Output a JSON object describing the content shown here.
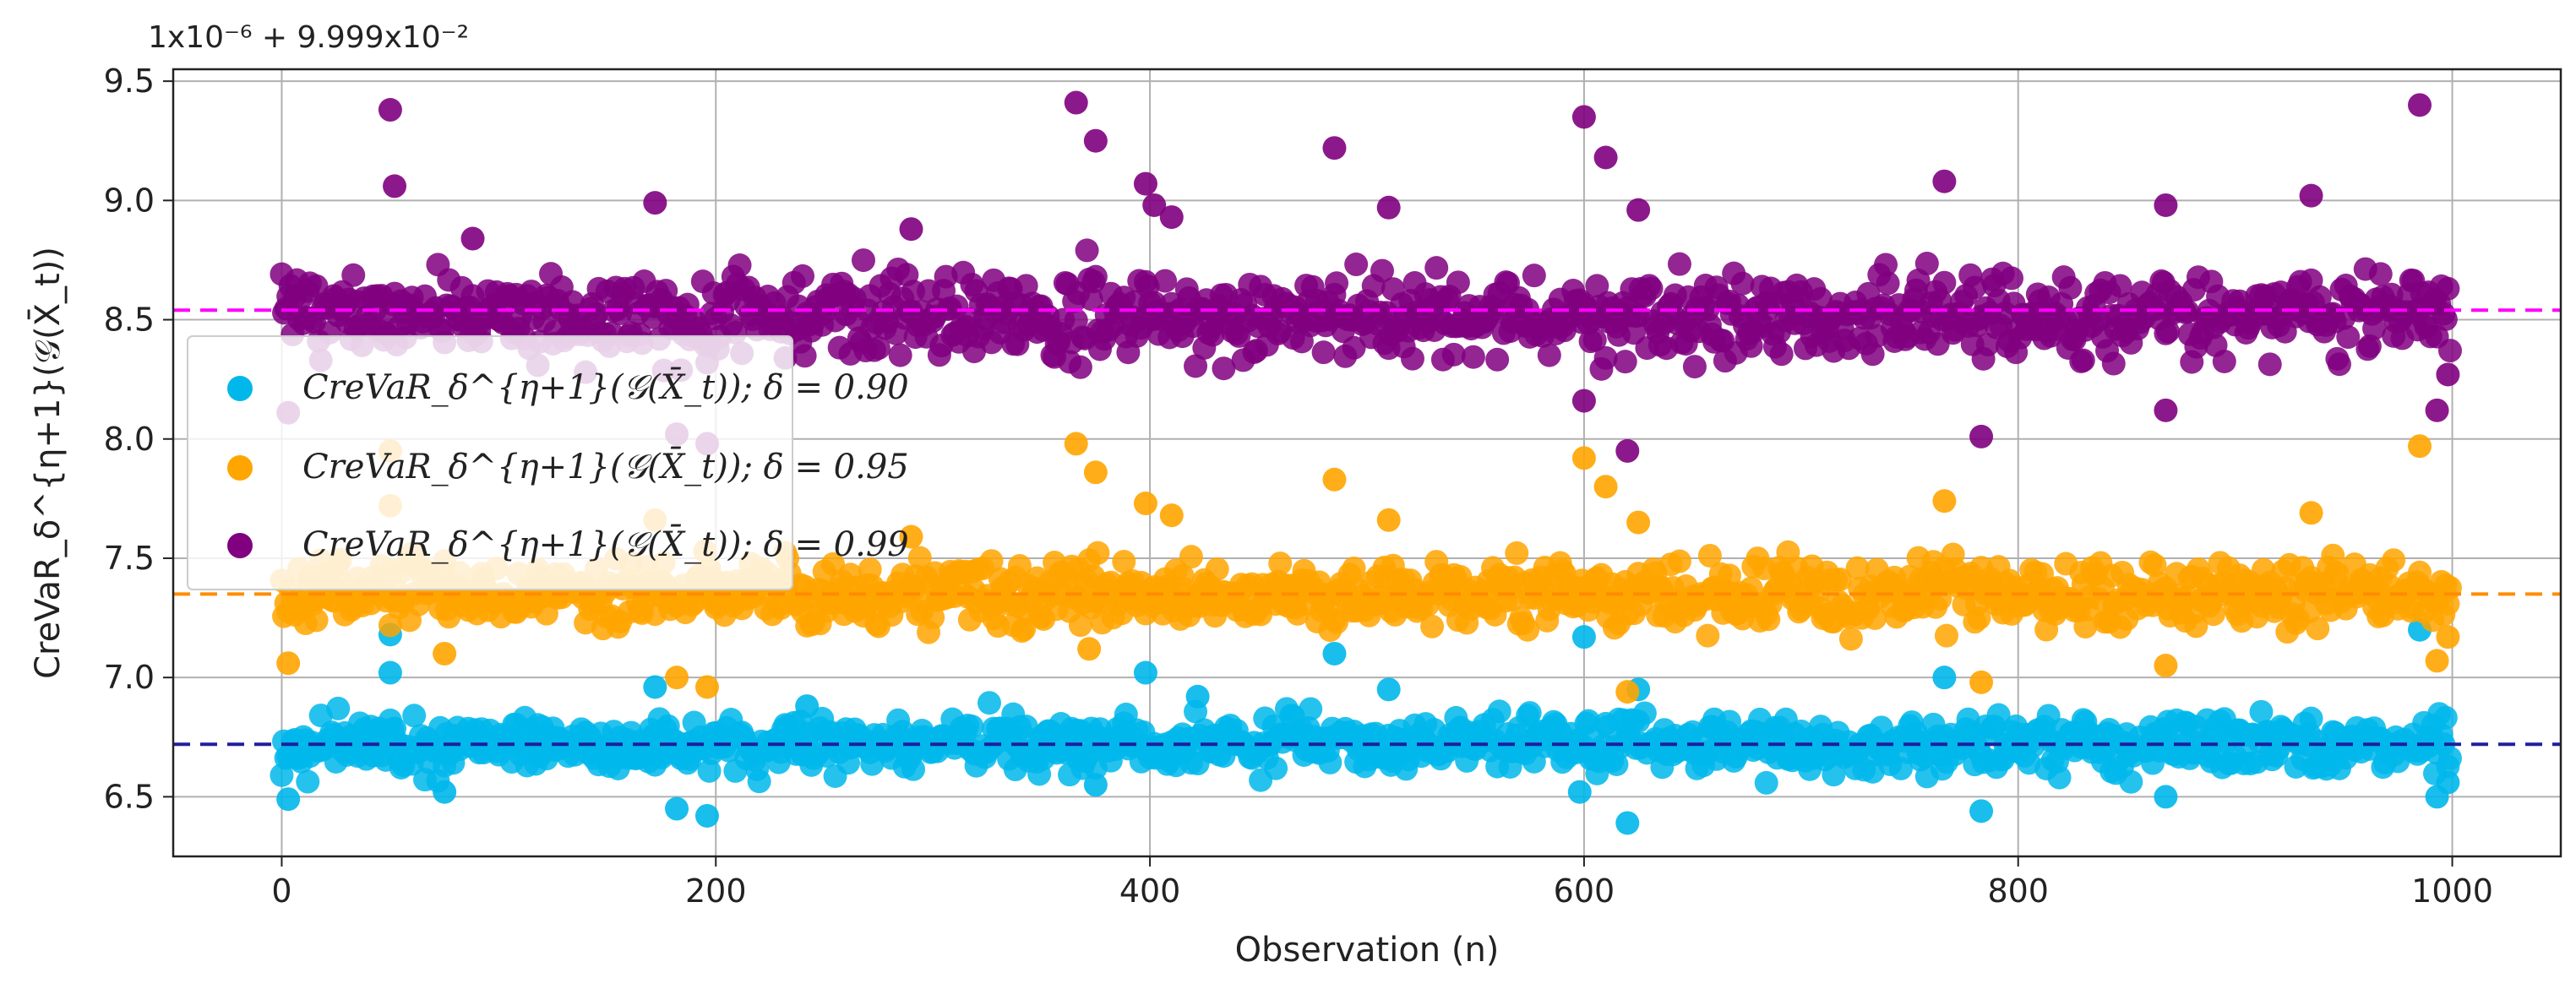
{
  "chart_data": {
    "type": "scatter",
    "title": "",
    "xlabel": "Observation (n)",
    "ylabel": "CreVaR_δ^{η+1}(𝒢(X̄_t))",
    "offset_text": "1x10⁻⁶ + 9.999x10⁻²",
    "xlim": [
      -50,
      1050
    ],
    "ylim": [
      6.25,
      9.55
    ],
    "xticks": [
      0,
      200,
      400,
      600,
      800,
      1000
    ],
    "yticks": [
      6.5,
      7.0,
      7.5,
      8.0,
      8.5,
      9.0,
      9.5
    ],
    "xtick_labels": [
      "0",
      "200",
      "400",
      "600",
      "800",
      "1000"
    ],
    "ytick_labels": [
      "6.5",
      "7.0",
      "7.5",
      "8.0",
      "8.5",
      "9.0",
      "9.5"
    ],
    "grid": true,
    "legend_position": "upper-left",
    "n_points_per_series": 1000,
    "series": [
      {
        "name": "CreVaR_δ^{η+1}(𝒢(X̄_t)); δ = 0.90",
        "color": "#00b7eb",
        "mean": 6.72,
        "spread_low": 6.58,
        "spread_high": 6.86,
        "reference_line": 6.72,
        "reference_line_color": "#1f1f9e",
        "outliers": [
          {
            "x": 3,
            "y": 6.49
          },
          {
            "x": 50,
            "y": 7.02
          },
          {
            "x": 50,
            "y": 7.18
          },
          {
            "x": 75,
            "y": 6.52
          },
          {
            "x": 172,
            "y": 6.96
          },
          {
            "x": 182,
            "y": 6.45
          },
          {
            "x": 196,
            "y": 6.42
          },
          {
            "x": 242,
            "y": 6.88
          },
          {
            "x": 375,
            "y": 6.55
          },
          {
            "x": 398,
            "y": 7.02
          },
          {
            "x": 422,
            "y": 6.92
          },
          {
            "x": 485,
            "y": 7.1
          },
          {
            "x": 510,
            "y": 6.95
          },
          {
            "x": 600,
            "y": 7.17
          },
          {
            "x": 598,
            "y": 6.52
          },
          {
            "x": 620,
            "y": 6.39
          },
          {
            "x": 625,
            "y": 6.95
          },
          {
            "x": 766,
            "y": 7.0
          },
          {
            "x": 783,
            "y": 6.44
          },
          {
            "x": 868,
            "y": 6.5
          },
          {
            "x": 985,
            "y": 7.2
          },
          {
            "x": 993,
            "y": 6.5
          },
          {
            "x": 998,
            "y": 6.56
          }
        ]
      },
      {
        "name": "CreVaR_δ^{η+1}(𝒢(X̄_t)); δ = 0.95",
        "color": "#ffa500",
        "mean": 7.35,
        "spread_low": 7.18,
        "spread_high": 7.52,
        "reference_line": 7.35,
        "reference_line_color": "#ff8c00",
        "outliers": [
          {
            "x": 3,
            "y": 7.06
          },
          {
            "x": 50,
            "y": 7.72
          },
          {
            "x": 50,
            "y": 7.95
          },
          {
            "x": 75,
            "y": 7.1
          },
          {
            "x": 172,
            "y": 7.66
          },
          {
            "x": 182,
            "y": 7.0
          },
          {
            "x": 196,
            "y": 6.96
          },
          {
            "x": 290,
            "y": 7.59
          },
          {
            "x": 366,
            "y": 7.98
          },
          {
            "x": 375,
            "y": 7.86
          },
          {
            "x": 372,
            "y": 7.12
          },
          {
            "x": 398,
            "y": 7.73
          },
          {
            "x": 410,
            "y": 7.68
          },
          {
            "x": 485,
            "y": 7.83
          },
          {
            "x": 510,
            "y": 7.66
          },
          {
            "x": 600,
            "y": 7.92
          },
          {
            "x": 610,
            "y": 7.8
          },
          {
            "x": 620,
            "y": 6.94
          },
          {
            "x": 625,
            "y": 7.65
          },
          {
            "x": 766,
            "y": 7.74
          },
          {
            "x": 783,
            "y": 6.98
          },
          {
            "x": 868,
            "y": 7.05
          },
          {
            "x": 935,
            "y": 7.69
          },
          {
            "x": 985,
            "y": 7.97
          },
          {
            "x": 993,
            "y": 7.07
          },
          {
            "x": 998,
            "y": 7.17
          }
        ]
      },
      {
        "name": "CreVaR_δ^{η+1}(𝒢(X̄_t)); δ = 0.99",
        "color": "#800080",
        "mean": 8.52,
        "spread_low": 8.3,
        "spread_high": 8.75,
        "reference_line": 8.54,
        "reference_line_color": "#ff00ff",
        "outliers": [
          {
            "x": 3,
            "y": 8.11
          },
          {
            "x": 50,
            "y": 9.38
          },
          {
            "x": 52,
            "y": 9.06
          },
          {
            "x": 88,
            "y": 8.84
          },
          {
            "x": 172,
            "y": 8.99
          },
          {
            "x": 182,
            "y": 8.02
          },
          {
            "x": 196,
            "y": 7.98
          },
          {
            "x": 290,
            "y": 8.88
          },
          {
            "x": 366,
            "y": 9.41
          },
          {
            "x": 375,
            "y": 9.25
          },
          {
            "x": 398,
            "y": 9.07
          },
          {
            "x": 402,
            "y": 8.98
          },
          {
            "x": 410,
            "y": 8.93
          },
          {
            "x": 485,
            "y": 9.22
          },
          {
            "x": 510,
            "y": 8.97
          },
          {
            "x": 600,
            "y": 9.35
          },
          {
            "x": 610,
            "y": 9.18
          },
          {
            "x": 600,
            "y": 8.16
          },
          {
            "x": 620,
            "y": 7.95
          },
          {
            "x": 625,
            "y": 8.96
          },
          {
            "x": 766,
            "y": 9.08
          },
          {
            "x": 783,
            "y": 8.01
          },
          {
            "x": 868,
            "y": 8.98
          },
          {
            "x": 868,
            "y": 8.12
          },
          {
            "x": 935,
            "y": 9.02
          },
          {
            "x": 985,
            "y": 9.4
          },
          {
            "x": 993,
            "y": 8.12
          },
          {
            "x": 998,
            "y": 8.27
          }
        ]
      }
    ]
  }
}
